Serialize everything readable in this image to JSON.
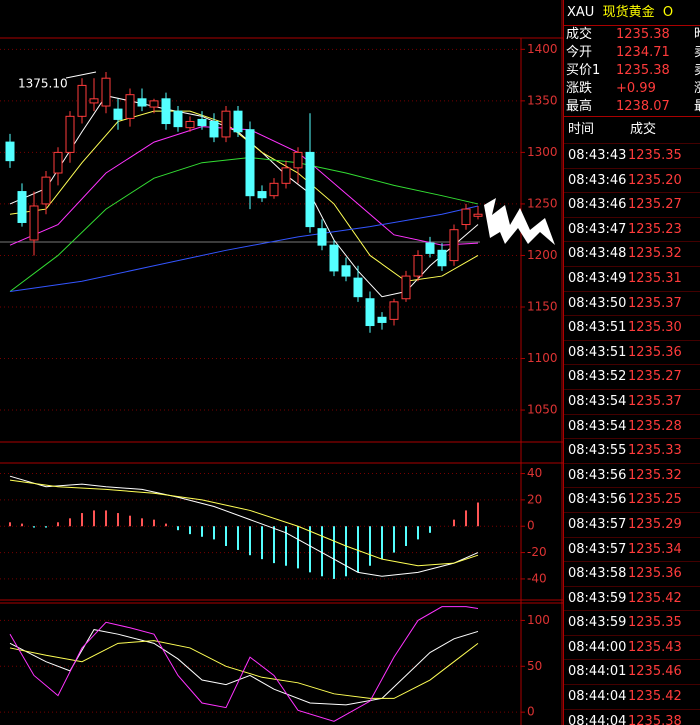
{
  "chart_data": [
    {
      "type": "candlestick",
      "annotation": "1375.10",
      "open": [
        1310,
        1262,
        1215,
        1250,
        1280,
        1300,
        1335,
        1348,
        1345,
        1342,
        1333,
        1352,
        1344,
        1352,
        1340,
        1324,
        1332,
        1330,
        1315,
        1340,
        1322,
        1262,
        1258,
        1270,
        1285,
        1300,
        1226,
        1210,
        1190,
        1178,
        1158,
        1140,
        1138,
        1158,
        1180,
        1212,
        1205,
        1195,
        1230,
        1238
      ],
      "high": [
        1318,
        1270,
        1262,
        1282,
        1305,
        1340,
        1372,
        1372,
        1378,
        1352,
        1362,
        1362,
        1352,
        1358,
        1345,
        1335,
        1340,
        1338,
        1345,
        1345,
        1330,
        1268,
        1275,
        1292,
        1305,
        1338,
        1235,
        1215,
        1198,
        1190,
        1165,
        1145,
        1158,
        1185,
        1205,
        1218,
        1212,
        1230,
        1250,
        1248
      ],
      "low": [
        1285,
        1228,
        1200,
        1240,
        1268,
        1290,
        1328,
        1340,
        1338,
        1322,
        1325,
        1340,
        1338,
        1322,
        1320,
        1320,
        1322,
        1310,
        1310,
        1315,
        1245,
        1252,
        1255,
        1265,
        1270,
        1222,
        1205,
        1180,
        1175,
        1155,
        1125,
        1128,
        1132,
        1155,
        1175,
        1198,
        1185,
        1190,
        1225,
        1235
      ],
      "close": [
        1292,
        1232,
        1248,
        1276,
        1300,
        1335,
        1365,
        1352,
        1372,
        1332,
        1356,
        1345,
        1350,
        1328,
        1325,
        1330,
        1326,
        1315,
        1340,
        1320,
        1258,
        1256,
        1270,
        1285,
        1300,
        1228,
        1210,
        1185,
        1180,
        1160,
        1132,
        1135,
        1155,
        1180,
        1200,
        1202,
        1190,
        1225,
        1245,
        1240
      ],
      "up_color": "#ff3b3b",
      "down_color": "#54ffff",
      "base_line": 1213,
      "series": [
        {
          "color": "#ffffff",
          "x": [
            0,
            3,
            6,
            8,
            10,
            13,
            16,
            19,
            21,
            23,
            25,
            27,
            29,
            31,
            33,
            35,
            37,
            39
          ],
          "values": [
            1250,
            1265,
            1320,
            1355,
            1350,
            1342,
            1335,
            1320,
            1300,
            1278,
            1260,
            1215,
            1185,
            1160,
            1165,
            1190,
            1210,
            1230
          ]
        },
        {
          "color": "#ffff55",
          "x": [
            0,
            3,
            6,
            9,
            12,
            15,
            18,
            21,
            24,
            27,
            30,
            33,
            36,
            39
          ],
          "values": [
            1240,
            1245,
            1290,
            1330,
            1340,
            1340,
            1328,
            1300,
            1280,
            1250,
            1200,
            1175,
            1180,
            1200
          ]
        },
        {
          "color": "#ff33ff",
          "x": [
            0,
            4,
            8,
            12,
            16,
            20,
            24,
            28,
            32,
            36,
            39
          ],
          "values": [
            1210,
            1230,
            1280,
            1310,
            1325,
            1322,
            1300,
            1260,
            1220,
            1210,
            1212
          ]
        },
        {
          "color": "#33dd33",
          "x": [
            0,
            4,
            8,
            12,
            16,
            20,
            24,
            28,
            32,
            36,
            39
          ],
          "values": [
            1165,
            1200,
            1245,
            1275,
            1290,
            1295,
            1290,
            1280,
            1268,
            1258,
            1250
          ]
        },
        {
          "color": "#3355ff",
          "x": [
            0,
            6,
            12,
            18,
            24,
            30,
            36,
            39
          ],
          "values": [
            1165,
            1175,
            1190,
            1205,
            1218,
            1228,
            1240,
            1248
          ]
        }
      ],
      "ylim": [
        1019,
        1411
      ],
      "yticks": [
        1050,
        1100,
        1150,
        1200,
        1250,
        1300,
        1350,
        1400
      ],
      "grid": true
    },
    {
      "type": "macd",
      "hist_up_color": "#ff5555",
      "hist_down_color": "#55ffff",
      "values": [
        3,
        2,
        -1,
        -1,
        3,
        6,
        10,
        12,
        12,
        10,
        8,
        6,
        5,
        2,
        -3,
        -6,
        -8,
        -10,
        -15,
        -18,
        -22,
        -25,
        -28,
        -30,
        -32,
        -35,
        -38,
        -40,
        -38,
        -35,
        -30,
        -25,
        -20,
        -15,
        -10,
        -5,
        0,
        5,
        12,
        18
      ],
      "series": [
        {
          "color": "#ffffff",
          "x": [
            0,
            3,
            6,
            8,
            11,
            14,
            17,
            20,
            23,
            26,
            29,
            31,
            34,
            37,
            39
          ],
          "values": [
            38,
            30,
            32,
            30,
            28,
            22,
            15,
            5,
            -5,
            -20,
            -35,
            -38,
            -35,
            -28,
            -20
          ]
        },
        {
          "color": "#ffff55",
          "x": [
            0,
            4,
            8,
            12,
            16,
            20,
            24,
            28,
            31,
            34,
            37,
            39
          ],
          "values": [
            35,
            30,
            28,
            25,
            20,
            12,
            0,
            -15,
            -25,
            -30,
            -28,
            -22
          ]
        }
      ],
      "ylim": [
        -56,
        48
      ],
      "yticks": [
        40,
        20,
        0,
        -20,
        -40
      ],
      "grid": true
    },
    {
      "type": "kdj",
      "series": [
        {
          "color": "#ffffff",
          "x": [
            0,
            3,
            5,
            7,
            9,
            12,
            14,
            16,
            18,
            20,
            22,
            25,
            28,
            31,
            33,
            35,
            37,
            39
          ],
          "values": [
            75,
            55,
            45,
            90,
            85,
            75,
            58,
            35,
            30,
            40,
            25,
            10,
            8,
            15,
            40,
            65,
            80,
            88
          ]
        },
        {
          "color": "#ffff55",
          "x": [
            0,
            3,
            6,
            9,
            12,
            15,
            18,
            21,
            24,
            27,
            30,
            32,
            35,
            37,
            39
          ],
          "values": [
            70,
            62,
            55,
            75,
            78,
            70,
            50,
            38,
            32,
            20,
            15,
            15,
            35,
            55,
            75
          ]
        },
        {
          "color": "#ff33ff",
          "x": [
            0,
            2,
            4,
            6,
            8,
            10,
            12,
            14,
            16,
            18,
            20,
            22,
            24,
            27,
            30,
            32,
            34,
            36,
            38,
            39
          ],
          "values": [
            85,
            40,
            18,
            70,
            98,
            92,
            85,
            40,
            10,
            5,
            60,
            40,
            2,
            -10,
            12,
            60,
            100,
            115,
            115,
            113
          ]
        }
      ],
      "ylim": [
        -14,
        119
      ],
      "yticks": [
        100,
        50,
        0
      ],
      "grid": true
    }
  ],
  "header": {
    "code": "XAU",
    "name": "现货黄金",
    "extra": "O"
  },
  "quote": [
    {
      "label": "成交",
      "value": "1235.38",
      "label2": "昨"
    },
    {
      "label": "今开",
      "value": "1234.71",
      "label2": "卖"
    },
    {
      "label": "买价1",
      "value": "1235.38",
      "label2": "卖"
    },
    {
      "label": "涨跌",
      "value": "+0.99",
      "label2": "涨"
    },
    {
      "label": "最高",
      "value": "1238.07",
      "label2": "最"
    }
  ],
  "trades": {
    "columns": [
      "时间",
      "成交"
    ],
    "rows": [
      [
        "08:43:43",
        "1235.35"
      ],
      [
        "08:43:46",
        "1235.20"
      ],
      [
        "08:43:46",
        "1235.27"
      ],
      [
        "08:43:47",
        "1235.23"
      ],
      [
        "08:43:48",
        "1235.32"
      ],
      [
        "08:43:49",
        "1235.31"
      ],
      [
        "08:43:50",
        "1235.37"
      ],
      [
        "08:43:51",
        "1235.30"
      ],
      [
        "08:43:51",
        "1235.36"
      ],
      [
        "08:43:52",
        "1235.27"
      ],
      [
        "08:43:54",
        "1235.37"
      ],
      [
        "08:43:54",
        "1235.28"
      ],
      [
        "08:43:55",
        "1235.33"
      ],
      [
        "08:43:56",
        "1235.32"
      ],
      [
        "08:43:56",
        "1235.25"
      ],
      [
        "08:43:57",
        "1235.29"
      ],
      [
        "08:43:57",
        "1235.34"
      ],
      [
        "08:43:58",
        "1235.36"
      ],
      [
        "08:43:59",
        "1235.42"
      ],
      [
        "08:43:59",
        "1235.35"
      ],
      [
        "08:44:00",
        "1235.43"
      ],
      [
        "08:44:01",
        "1235.46"
      ],
      [
        "08:44:04",
        "1235.42"
      ],
      [
        "08:44:04",
        "1235.38"
      ]
    ]
  }
}
